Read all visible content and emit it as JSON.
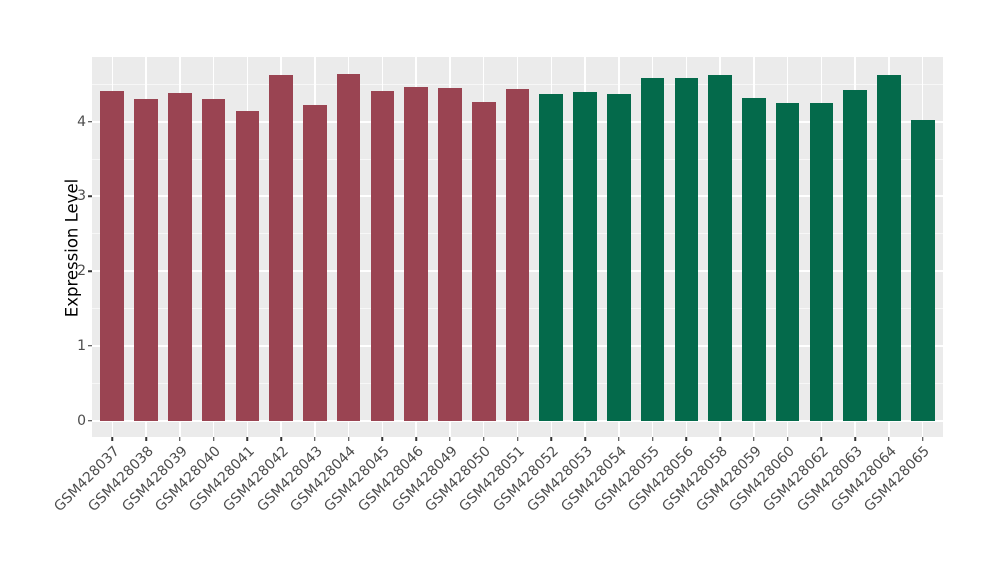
{
  "chart_data": {
    "type": "bar",
    "title": "",
    "xlabel": "",
    "ylabel": "Expression Level",
    "yticks": [
      0,
      1,
      2,
      3,
      4
    ],
    "yticks_minor": [
      0.5,
      1.5,
      2.5,
      3.5,
      4.5
    ],
    "ylim_panel": [
      -0.22,
      4.87
    ],
    "grid": "white major and minor horizontal gridlines, white vertical gridline at each category, on grey panel",
    "legend": "none",
    "colors": {
      "panel_background": "#EBEBEB",
      "gridline": "#FFFFFF",
      "left_group_fill": "#9A4452",
      "right_group_fill": "#046A4B",
      "tick_label": "#4D4D4D",
      "axis_title": "#000000"
    },
    "categories": [
      "GSM428037",
      "GSM428038",
      "GSM428039",
      "GSM428040",
      "GSM428041",
      "GSM428042",
      "GSM428043",
      "GSM428044",
      "GSM428045",
      "GSM428046",
      "GSM428049",
      "GSM428050",
      "GSM428051",
      "GSM428052",
      "GSM428053",
      "GSM428054",
      "GSM428055",
      "GSM428056",
      "GSM428058",
      "GSM428059",
      "GSM428060",
      "GSM428062",
      "GSM428063",
      "GSM428064",
      "GSM428065"
    ],
    "values": [
      4.41,
      4.31,
      4.38,
      4.31,
      4.14,
      4.63,
      4.23,
      4.64,
      4.41,
      4.46,
      4.45,
      4.26,
      4.44,
      4.37,
      4.4,
      4.37,
      4.59,
      4.58,
      4.63,
      4.32,
      4.25,
      4.25,
      4.43,
      4.63,
      4.02
    ],
    "bar_colors": [
      "#9A4452",
      "#9A4452",
      "#9A4452",
      "#9A4452",
      "#9A4452",
      "#9A4452",
      "#9A4452",
      "#9A4452",
      "#9A4452",
      "#9A4452",
      "#9A4452",
      "#9A4452",
      "#9A4452",
      "#046A4B",
      "#046A4B",
      "#046A4B",
      "#046A4B",
      "#046A4B",
      "#046A4B",
      "#046A4B",
      "#046A4B",
      "#046A4B",
      "#046A4B",
      "#046A4B",
      "#046A4B"
    ]
  }
}
